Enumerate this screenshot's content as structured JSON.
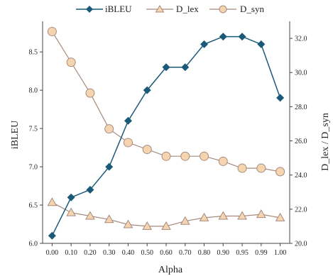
{
  "chart_data": {
    "type": "line",
    "xlabel": "Alpha",
    "ylabel_left": "iBLEU",
    "ylabel_right": "D_lex / D_syn",
    "x_tick_labels": [
      "0.00",
      "0.10",
      "0.20",
      "0.30",
      "0.40",
      "0.50",
      "0.60",
      "0.70",
      "0.80",
      "0.90",
      "0.95",
      "0.99",
      "1.00"
    ],
    "y_left": {
      "min": 6.0,
      "max": 8.9,
      "ticks": [
        "6.0",
        "6.5",
        "7.0",
        "7.5",
        "8.0",
        "8.5"
      ]
    },
    "y_right": {
      "min": 20.0,
      "max": 33.0,
      "ticks": [
        "20.0",
        "22.0",
        "24.0",
        "26.0",
        "28.0",
        "30.0",
        "32.0"
      ]
    },
    "legend_position": "top-center",
    "grid": false,
    "series": [
      {
        "name": "iBLEU",
        "axis": "left",
        "marker": "diamond",
        "color": "#1a5a78",
        "values": [
          6.1,
          6.6,
          6.7,
          7.0,
          7.6,
          8.0,
          8.3,
          8.3,
          8.6,
          8.7,
          8.7,
          8.6,
          7.9
        ]
      },
      {
        "name": "D_lex",
        "axis": "right",
        "marker": "triangle",
        "color": "#a68a7e",
        "fill": "#f5d5b0",
        "values": [
          22.4,
          21.8,
          21.6,
          21.4,
          21.1,
          21.0,
          21.0,
          21.3,
          21.5,
          21.6,
          21.6,
          21.7,
          21.5
        ]
      },
      {
        "name": "D_syn",
        "axis": "right",
        "marker": "circle",
        "color": "#a68a7e",
        "fill": "#f5d5b0",
        "values": [
          32.4,
          30.6,
          28.8,
          26.7,
          25.9,
          25.5,
          25.1,
          25.1,
          25.1,
          24.8,
          24.4,
          24.4,
          24.2
        ]
      }
    ]
  }
}
